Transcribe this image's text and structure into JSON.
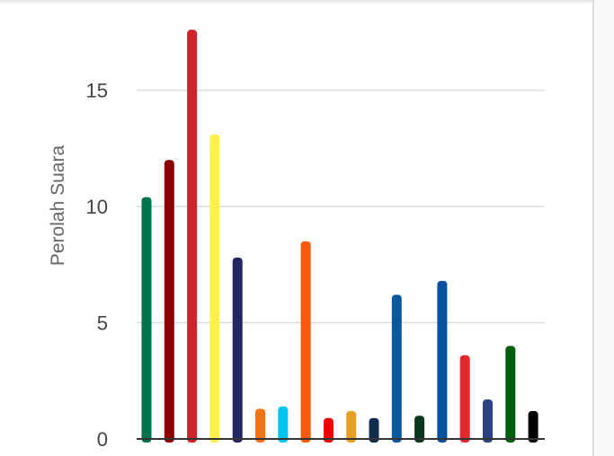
{
  "chart_data": {
    "type": "bar",
    "ylabel": "Perolah Suara",
    "ylim": [
      0,
      17.6
    ],
    "yticks": [
      0,
      5,
      10,
      15
    ],
    "ytick_labels": [
      "0",
      "5",
      "10",
      "15"
    ],
    "grid": true,
    "values": [
      10.4,
      12.0,
      17.6,
      13.1,
      7.8,
      1.3,
      1.4,
      8.5,
      0.9,
      1.2,
      0.9,
      6.2,
      1.0,
      6.8,
      3.6,
      1.7,
      4.0,
      1.2
    ],
    "colors": [
      "#00734a",
      "#8b0000",
      "#d3232a",
      "#fff04a",
      "#242562",
      "#f47315",
      "#00c5f3",
      "#f75a0a",
      "#ee0000",
      "#e5a023",
      "#0e2b4c",
      "#08589e",
      "#08371d",
      "#0652a0",
      "#e1292e",
      "#2c4282",
      "#005e0d",
      "#000000"
    ]
  }
}
